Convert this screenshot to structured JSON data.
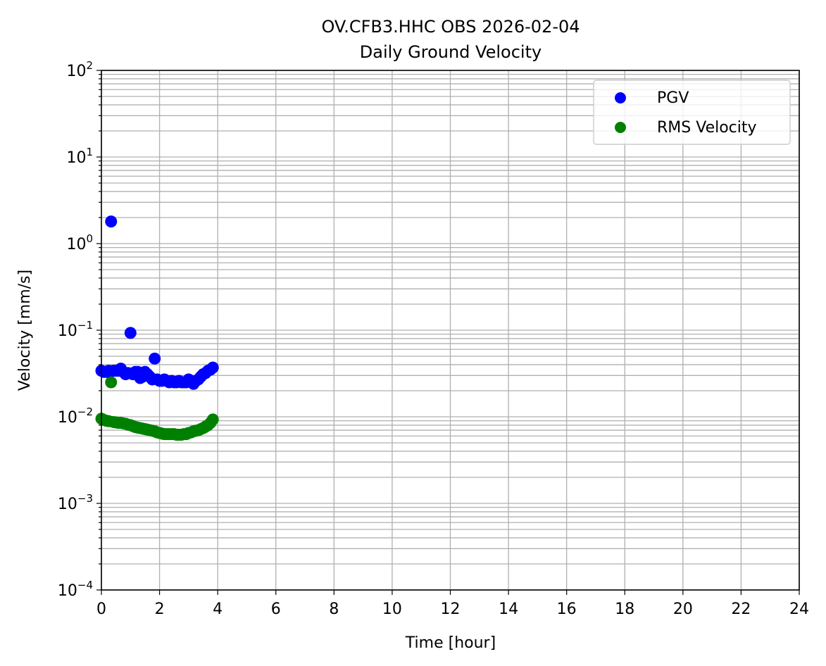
{
  "chart_data": {
    "type": "scatter",
    "title": "OV.CFB3.HHC OBS 2026-02-04",
    "subtitle": "Daily Ground Velocity",
    "xlabel": "Time [hour]",
    "ylabel": "Velocity [mm/s]",
    "xlim": [
      0,
      24
    ],
    "ylim": [
      0.0001,
      100
    ],
    "yscale": "log",
    "grid": true,
    "legend_position": "top-right",
    "x_ticks": [
      "0",
      "2",
      "4",
      "6",
      "8",
      "10",
      "12",
      "14",
      "16",
      "18",
      "20",
      "22",
      "24"
    ],
    "y_ticks": [
      {
        "base": "10",
        "exp": "−4"
      },
      {
        "base": "10",
        "exp": "−3"
      },
      {
        "base": "10",
        "exp": "−2"
      },
      {
        "base": "10",
        "exp": "−1"
      },
      {
        "base": "10",
        "exp": "0"
      },
      {
        "base": "10",
        "exp": "1"
      },
      {
        "base": "10",
        "exp": "2"
      }
    ],
    "series": [
      {
        "name": "PGV",
        "color": "#0000ff",
        "points": [
          [
            0.0,
            0.034
          ],
          [
            0.083,
            0.033
          ],
          [
            0.167,
            0.033
          ],
          [
            0.25,
            0.034
          ],
          [
            0.333,
            1.8
          ],
          [
            0.417,
            0.034
          ],
          [
            0.5,
            0.034
          ],
          [
            0.583,
            0.034
          ],
          [
            0.667,
            0.036
          ],
          [
            0.75,
            0.033
          ],
          [
            0.833,
            0.031
          ],
          [
            0.917,
            0.032
          ],
          [
            1.0,
            0.093
          ],
          [
            1.083,
            0.031
          ],
          [
            1.167,
            0.033
          ],
          [
            1.25,
            0.033
          ],
          [
            1.333,
            0.028
          ],
          [
            1.417,
            0.029
          ],
          [
            1.5,
            0.033
          ],
          [
            1.583,
            0.031
          ],
          [
            1.667,
            0.029
          ],
          [
            1.75,
            0.027
          ],
          [
            1.833,
            0.047
          ],
          [
            1.917,
            0.027
          ],
          [
            2.0,
            0.026
          ],
          [
            2.083,
            0.026
          ],
          [
            2.167,
            0.027
          ],
          [
            2.25,
            0.026
          ],
          [
            2.333,
            0.025
          ],
          [
            2.417,
            0.026
          ],
          [
            2.5,
            0.025
          ],
          [
            2.583,
            0.025
          ],
          [
            2.667,
            0.026
          ],
          [
            2.75,
            0.025
          ],
          [
            2.833,
            0.025
          ],
          [
            2.917,
            0.025
          ],
          [
            3.0,
            0.027
          ],
          [
            3.083,
            0.026
          ],
          [
            3.167,
            0.024
          ],
          [
            3.25,
            0.026
          ],
          [
            3.333,
            0.027
          ],
          [
            3.417,
            0.029
          ],
          [
            3.5,
            0.031
          ],
          [
            3.583,
            0.032
          ],
          [
            3.667,
            0.034
          ],
          [
            3.75,
            0.035
          ],
          [
            3.833,
            0.037
          ]
        ]
      },
      {
        "name": "RMS Velocity",
        "color": "#008000",
        "points": [
          [
            0.0,
            0.0095
          ],
          [
            0.083,
            0.0092
          ],
          [
            0.167,
            0.009
          ],
          [
            0.25,
            0.0089
          ],
          [
            0.333,
            0.025
          ],
          [
            0.417,
            0.0087
          ],
          [
            0.5,
            0.0086
          ],
          [
            0.583,
            0.0085
          ],
          [
            0.667,
            0.0085
          ],
          [
            0.75,
            0.0084
          ],
          [
            0.833,
            0.0083
          ],
          [
            0.917,
            0.0081
          ],
          [
            1.0,
            0.008
          ],
          [
            1.083,
            0.0078
          ],
          [
            1.167,
            0.0076
          ],
          [
            1.25,
            0.0075
          ],
          [
            1.333,
            0.0074
          ],
          [
            1.417,
            0.0073
          ],
          [
            1.5,
            0.0072
          ],
          [
            1.583,
            0.0071
          ],
          [
            1.667,
            0.007
          ],
          [
            1.75,
            0.0069
          ],
          [
            1.833,
            0.0068
          ],
          [
            1.917,
            0.0066
          ],
          [
            2.0,
            0.0065
          ],
          [
            2.083,
            0.0064
          ],
          [
            2.167,
            0.0063
          ],
          [
            2.25,
            0.0063
          ],
          [
            2.333,
            0.0063
          ],
          [
            2.417,
            0.0063
          ],
          [
            2.5,
            0.0063
          ],
          [
            2.583,
            0.0062
          ],
          [
            2.667,
            0.0062
          ],
          [
            2.75,
            0.0062
          ],
          [
            2.833,
            0.0063
          ],
          [
            2.917,
            0.0063
          ],
          [
            3.0,
            0.0065
          ],
          [
            3.083,
            0.0066
          ],
          [
            3.167,
            0.0068
          ],
          [
            3.25,
            0.0069
          ],
          [
            3.333,
            0.007
          ],
          [
            3.417,
            0.0072
          ],
          [
            3.5,
            0.0074
          ],
          [
            3.583,
            0.0077
          ],
          [
            3.667,
            0.008
          ],
          [
            3.75,
            0.0085
          ],
          [
            3.833,
            0.0093
          ]
        ]
      }
    ]
  }
}
